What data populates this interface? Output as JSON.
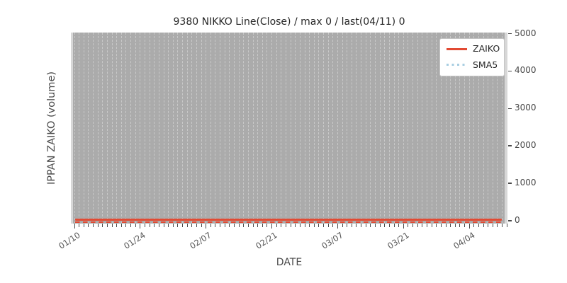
{
  "figure": {
    "title": "9380 NIKKO Line(Close) / max 0 / last(04/11) 0",
    "xlabel": "DATE",
    "ylabel": "IPPAN ZAIKO (volume)"
  },
  "legend": {
    "entries": [
      {
        "label": "ZAIKO",
        "style": "solid",
        "color": "#e24a33"
      },
      {
        "label": "SMA5",
        "style": "dotted",
        "color": "#a8cee2"
      }
    ],
    "position": "upper right"
  },
  "chart_data": {
    "type": "line",
    "title": "9380 NIKKO Line(Close) / max 0 / last(04/11) 0",
    "xlabel": "DATE",
    "ylabel": "IPPAN ZAIKO (volume)",
    "x_start": "01/10",
    "x_end": "04/11",
    "num_days": 92,
    "x_tick_labels": [
      "01/10",
      "01/24",
      "02/07",
      "02/21",
      "03/07",
      "03/21",
      "04/04"
    ],
    "x_tick_interval_days": 14,
    "y_tick_labels": [
      "0",
      "1000",
      "2000",
      "3000",
      "4000",
      "5000"
    ],
    "ylim": [
      0,
      5000
    ],
    "grid": "daily vertical dashed gridlines on gray plot background",
    "legend_position": "upper right",
    "series": [
      {
        "name": "ZAIKO",
        "style": "solid",
        "color": "#e24a33",
        "constant_value": 0
      },
      {
        "name": "SMA5",
        "style": "dotted",
        "color": "#a8cee2",
        "constant_value": 0
      }
    ],
    "annotations": {
      "max_value": 0,
      "last_date": "04/11",
      "last_value": 0,
      "max_line": {
        "style": "dashed",
        "color": "#e24a33",
        "y": 0
      }
    }
  },
  "colors": {
    "figure_bg": "#ffffff",
    "plot_bg": "#ababab",
    "plot_margin_bg": "#d7d7d7",
    "gridline": "#c9c9c9",
    "zaiko_red": "#e24a33",
    "sma5_blue": "#a8cee2",
    "tick_text": "#4a4a4a"
  }
}
